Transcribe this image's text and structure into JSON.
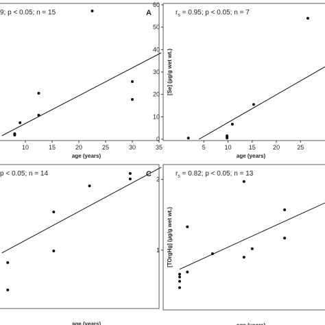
{
  "chart_data": [
    {
      "type": "scatter",
      "stat_text": "9; p < 0.05; n = 15",
      "panel_label": "A",
      "x_label": "age (years)",
      "x": [
        22.5,
        12.5,
        12.5,
        9,
        8,
        8,
        8,
        30,
        30
      ],
      "values": [
        94.5,
        34.5,
        18.5,
        13,
        5,
        4,
        4.5,
        43,
        30
      ],
      "fit": {
        "x": [
          5.6,
          35.4
        ],
        "y": [
          3.5,
          64
        ]
      },
      "xlim": [
        5,
        35
      ],
      "ylim": [
        0,
        100
      ],
      "xticks": [
        10,
        15,
        20,
        25,
        30,
        35
      ],
      "color": "#111"
    },
    {
      "type": "scatter",
      "stat_symbol": "r",
      "stat_subscript": "s",
      "stat_text": " = 0.95; p < 0.05; n = 7",
      "x_label": "age (years)",
      "y_label": "[Se] (µg/g wet wt.)",
      "x": [
        1.8,
        9.8,
        9.8,
        9.8,
        10.9,
        15.3,
        26.5
      ],
      "values": [
        0.5,
        1.5,
        1.0,
        0.5,
        6.7,
        15.5,
        54
      ],
      "fit": {
        "x": [
          4.0,
          30.1
        ],
        "y": [
          0,
          32.4
        ]
      },
      "xlim": [
        -3.4,
        30.9
      ],
      "ylim": [
        -0.6,
        60.6
      ],
      "xticks": [
        5,
        10,
        15,
        20,
        25
      ],
      "yticks": [
        0,
        10,
        20,
        30,
        40,
        50,
        60
      ],
      "color": "#111"
    },
    {
      "type": "scatter",
      "stat_text": "p < 0.05; n = 14",
      "panel_label": "C",
      "x_label": "age (years)",
      "x": [
        29.6,
        29.6,
        22,
        15.3,
        15.3,
        6.7,
        6.7
      ],
      "values": [
        93.8,
        90,
        85.2,
        67.1,
        40,
        31.9,
        12.9
      ],
      "fit": {
        "x": [
          5.6,
          35.4
        ],
        "y": [
          38.6,
          98.1
        ]
      },
      "xlim": [
        5,
        35
      ],
      "ylim": [
        0,
        100
      ],
      "color": "#111"
    },
    {
      "type": "scatter",
      "stat_symbol": "r",
      "stat_subscript": "s",
      "stat_text": " = 0.82; p < 0.05; n = 13",
      "x_label": "age (years)",
      "y_label": "[TOrgHg] (µg/g wet wt.)",
      "x": [
        0,
        0,
        0,
        0,
        1.6,
        1.6,
        6.8,
        13.3,
        13.3,
        15,
        21.7,
        21.7
      ],
      "values": [
        0.66,
        0.62,
        0.56,
        0.47,
        1.33,
        0.69,
        0.95,
        1.97,
        0.9,
        1.02,
        1.57,
        1.17
      ],
      "fit": {
        "x": [
          0,
          30.1
        ],
        "y": [
          0.73,
          1.67
        ]
      },
      "xlim": [
        -3.4,
        30.9
      ],
      "ylim": [
        0.155,
        2.21
      ],
      "yticks": [
        1,
        2
      ],
      "color": "#111"
    }
  ]
}
